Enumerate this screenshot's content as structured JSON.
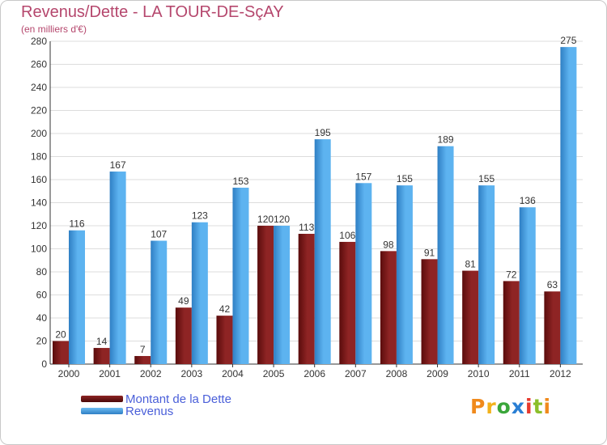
{
  "chart_data": {
    "type": "bar",
    "title": "Revenus/Dette - LA TOUR-DE-SçAY",
    "subtitle": "(en milliers d'€)",
    "categories": [
      "2000",
      "2001",
      "2002",
      "2003",
      "2004",
      "2005",
      "2006",
      "2007",
      "2008",
      "2009",
      "2010",
      "2011",
      "2012"
    ],
    "series": [
      {
        "name": "Montant de la Dette",
        "color": "#7a1616",
        "values": [
          20,
          14,
          7,
          49,
          42,
          120,
          113,
          106,
          98,
          91,
          81,
          72,
          63
        ]
      },
      {
        "name": "Revenus",
        "color": "#4a9fe3",
        "values": [
          116,
          167,
          107,
          123,
          153,
          120,
          195,
          157,
          155,
          189,
          155,
          136,
          275
        ]
      }
    ],
    "ylim": [
      0,
      280
    ],
    "yticks": [
      0,
      20,
      40,
      60,
      80,
      100,
      120,
      140,
      160,
      180,
      200,
      220,
      240,
      260,
      280
    ],
    "grid": true,
    "legend_position": "bottom-left"
  },
  "logo": {
    "letters": [
      "P",
      "r",
      "o",
      "x",
      "i",
      "t",
      "i"
    ],
    "colors": [
      "#f08a1c",
      "#f2b21b",
      "#3aa63a",
      "#2a7fd4",
      "#e63a2e",
      "#8bbf2a",
      "#f08a1c"
    ]
  }
}
